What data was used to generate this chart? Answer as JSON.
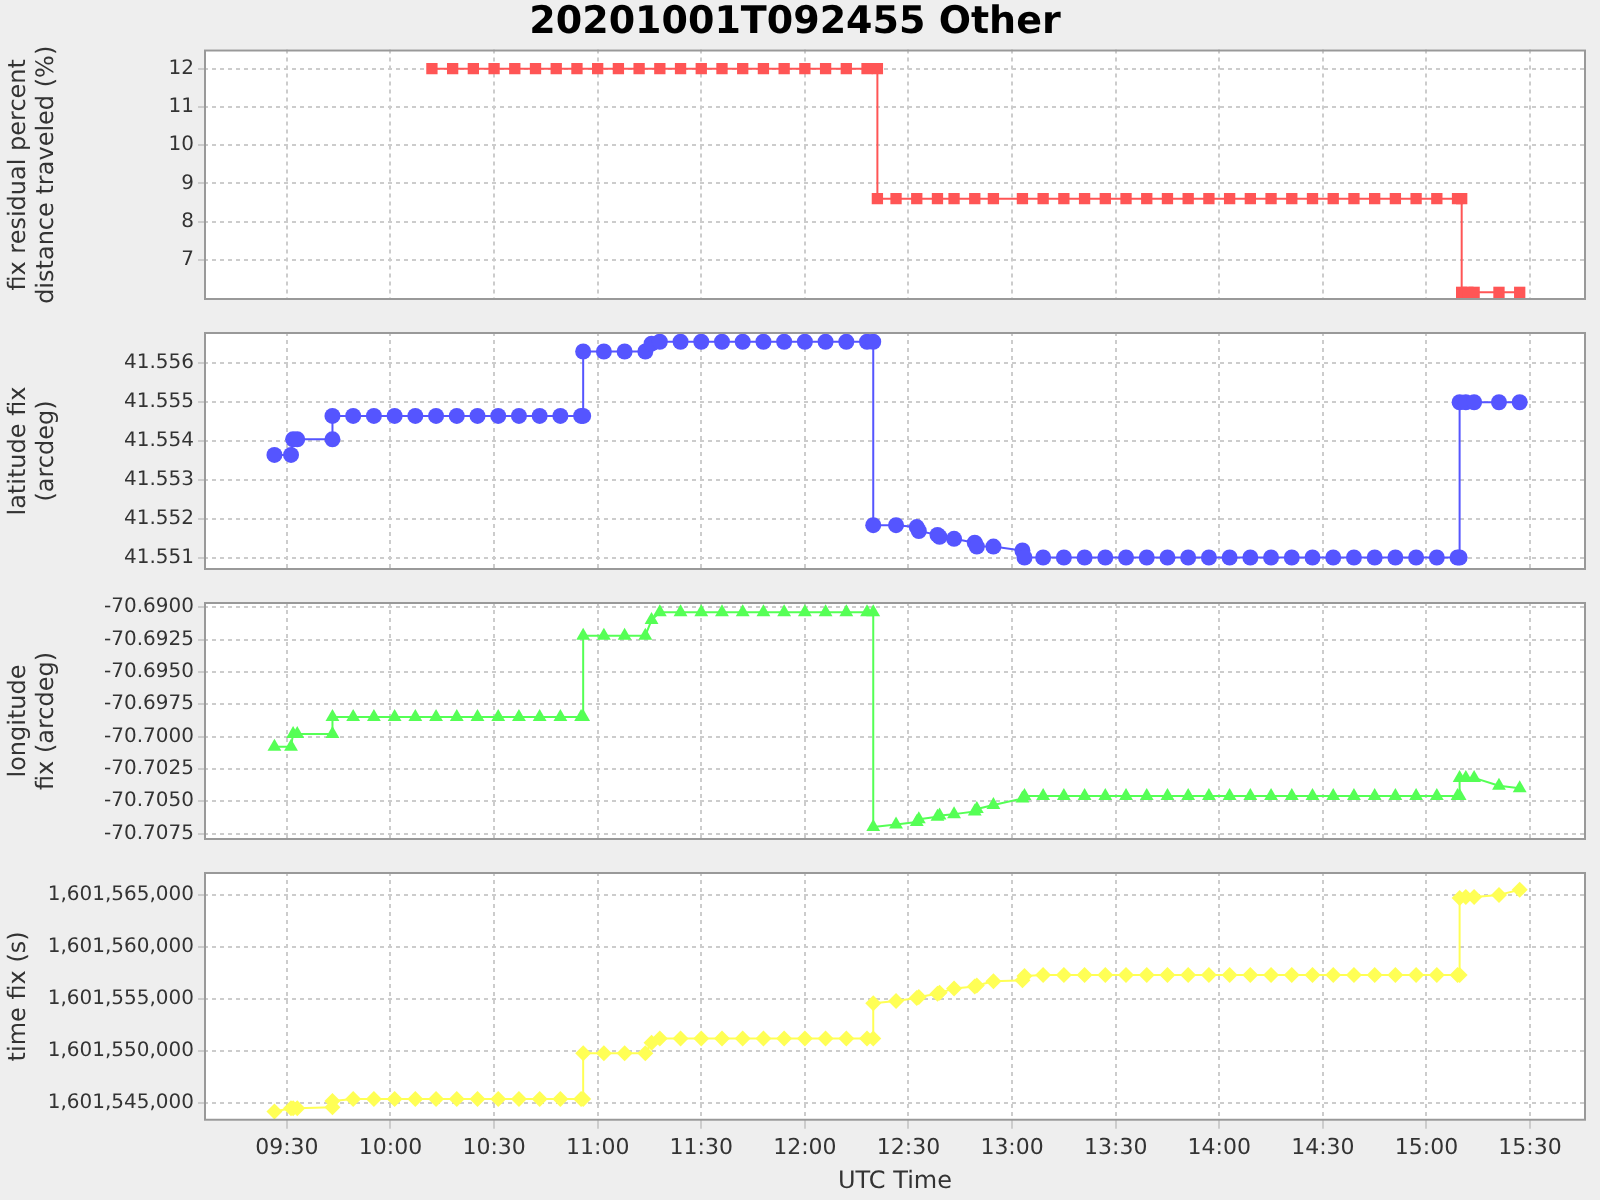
{
  "chart_data": [
    {
      "type": "line",
      "title": "20201001T092455 Other",
      "ylabel": "fix residual percent distance traveled (%)",
      "color": "#ff5555",
      "marker": "square",
      "line_style": "solid",
      "grid": true,
      "tick_labels": "y",
      "xlim": [
        9.1,
        15.77
      ],
      "xticks": [
        {
          "value": 9.5,
          "label": null
        },
        {
          "value": 10,
          "label": null
        },
        {
          "value": 10.5,
          "label": null
        },
        {
          "value": 11,
          "label": null
        },
        {
          "value": 11.5,
          "label": null
        },
        {
          "value": 12,
          "label": null
        },
        {
          "value": 12.5,
          "label": null
        },
        {
          "value": 13,
          "label": null
        },
        {
          "value": 13.5,
          "label": null
        },
        {
          "value": 14,
          "label": null
        },
        {
          "value": 14.5,
          "label": null
        },
        {
          "value": 15,
          "label": null
        },
        {
          "value": 15.5,
          "label": null
        }
      ],
      "ylim": [
        5.95,
        12.5
      ],
      "yticks": [
        7,
        8,
        9,
        10,
        11,
        12
      ],
      "x": [
        10.2,
        10.3,
        10.4,
        10.5,
        10.6,
        10.7,
        10.8,
        10.9,
        11.0,
        11.1,
        11.2,
        11.3,
        11.4,
        11.5,
        11.6,
        11.7,
        11.8,
        11.9,
        12.0,
        12.1,
        12.2,
        12.3,
        12.35,
        12.35,
        12.44,
        12.54,
        12.64,
        12.72,
        12.82,
        12.91,
        13.05,
        13.15,
        13.25,
        13.35,
        13.45,
        13.55,
        13.65,
        13.75,
        13.85,
        13.95,
        14.05,
        14.15,
        14.25,
        14.35,
        14.45,
        14.55,
        14.65,
        14.75,
        14.85,
        14.95,
        15.05,
        15.15,
        15.17,
        15.17,
        15.2,
        15.23,
        15.35,
        15.45
      ],
      "values": [
        12,
        12,
        12,
        12,
        12,
        12,
        12,
        12,
        12,
        12,
        12,
        12,
        12,
        12,
        12,
        12,
        12,
        12,
        12,
        12,
        12,
        12,
        12,
        8.6,
        8.6,
        8.6,
        8.6,
        8.6,
        8.6,
        8.6,
        8.6,
        8.6,
        8.6,
        8.6,
        8.6,
        8.6,
        8.6,
        8.6,
        8.6,
        8.6,
        8.6,
        8.6,
        8.6,
        8.6,
        8.6,
        8.6,
        8.6,
        8.6,
        8.6,
        8.6,
        8.6,
        8.6,
        8.6,
        6.15,
        6.15,
        6.15,
        6.15,
        6.15
      ]
    },
    {
      "type": "line",
      "ylabel": "latitude fix (arcdeg)",
      "color": "#5555ff",
      "marker": "circle",
      "line_style": "solid",
      "grid": true,
      "tick_labels": "y",
      "xlim": [
        9.1,
        15.77
      ],
      "xticks": [
        {
          "value": 9.5,
          "label": null
        },
        {
          "value": 10,
          "label": null
        },
        {
          "value": 10.5,
          "label": null
        },
        {
          "value": 11,
          "label": null
        },
        {
          "value": 11.5,
          "label": null
        },
        {
          "value": 12,
          "label": null
        },
        {
          "value": 12.5,
          "label": null
        },
        {
          "value": 13,
          "label": null
        },
        {
          "value": 13.5,
          "label": null
        },
        {
          "value": 14,
          "label": null
        },
        {
          "value": 14.5,
          "label": null
        },
        {
          "value": 15,
          "label": null
        },
        {
          "value": 15.5,
          "label": null
        }
      ],
      "ylim": [
        41.5507,
        41.5568
      ],
      "yticks": [
        41.551,
        41.552,
        41.553,
        41.554,
        41.555,
        41.556
      ],
      "x": [
        9.44,
        9.52,
        9.53,
        9.55,
        9.72,
        9.72,
        9.82,
        9.92,
        10.02,
        10.12,
        10.22,
        10.32,
        10.42,
        10.52,
        10.62,
        10.72,
        10.82,
        10.92,
        10.93,
        10.93,
        11.03,
        11.13,
        11.23,
        11.26,
        11.3,
        11.4,
        11.5,
        11.6,
        11.7,
        11.8,
        11.9,
        12.0,
        12.1,
        12.2,
        12.3,
        12.33,
        12.33,
        12.44,
        12.54,
        12.55,
        12.64,
        12.65,
        12.72,
        12.82,
        12.83,
        12.91,
        13.05,
        13.06,
        13.15,
        13.25,
        13.35,
        13.45,
        13.55,
        13.65,
        13.75,
        13.85,
        13.95,
        14.05,
        14.15,
        14.25,
        14.35,
        14.45,
        14.55,
        14.65,
        14.75,
        14.85,
        14.95,
        15.05,
        15.15,
        15.16,
        15.16,
        15.19,
        15.23,
        15.35,
        15.45
      ],
      "values": [
        41.55365,
        41.55365,
        41.55405,
        41.55405,
        41.55405,
        41.55465,
        41.55465,
        41.55465,
        41.55465,
        41.55465,
        41.55465,
        41.55465,
        41.55465,
        41.55465,
        41.55465,
        41.55465,
        41.55465,
        41.55465,
        41.55465,
        41.5563,
        41.5563,
        41.5563,
        41.5563,
        41.5565,
        41.55655,
        41.55655,
        41.55655,
        41.55655,
        41.55655,
        41.55655,
        41.55655,
        41.55655,
        41.55655,
        41.55655,
        41.55655,
        41.55655,
        41.55185,
        41.55185,
        41.5518,
        41.5517,
        41.5516,
        41.55155,
        41.5515,
        41.5514,
        41.5513,
        41.5513,
        41.5512,
        41.55102,
        41.55102,
        41.55102,
        41.55102,
        41.55102,
        41.55102,
        41.55102,
        41.55102,
        41.55102,
        41.55102,
        41.55102,
        41.55102,
        41.55102,
        41.55102,
        41.55102,
        41.55102,
        41.55102,
        41.55102,
        41.55102,
        41.55102,
        41.55102,
        41.55102,
        41.55102,
        41.555,
        41.555,
        41.555,
        41.555,
        41.555
      ]
    },
    {
      "type": "line",
      "ylabel": "longitude fix (arcdeg)",
      "color": "#55ff55",
      "marker": "triangle",
      "line_style": "solid",
      "grid": true,
      "tick_labels": "y",
      "xlim": [
        9.1,
        15.77
      ],
      "xticks": [
        {
          "value": 9.5,
          "label": null
        },
        {
          "value": 10,
          "label": null
        },
        {
          "value": 10.5,
          "label": null
        },
        {
          "value": 11,
          "label": null
        },
        {
          "value": 11.5,
          "label": null
        },
        {
          "value": 12,
          "label": null
        },
        {
          "value": 12.5,
          "label": null
        },
        {
          "value": 13,
          "label": null
        },
        {
          "value": 13.5,
          "label": null
        },
        {
          "value": 14,
          "label": null
        },
        {
          "value": 14.5,
          "label": null
        },
        {
          "value": 15,
          "label": null
        },
        {
          "value": 15.5,
          "label": null
        }
      ],
      "ylim": [
        -70.708,
        -70.6896
      ],
      "yticks": [
        {
          "value": -70.7075,
          "label": "-70.7075"
        },
        {
          "value": -70.705,
          "label": "-70.7050"
        },
        {
          "value": -70.7025,
          "label": "-70.7025"
        },
        {
          "value": -70.7,
          "label": "-70.7000"
        },
        {
          "value": -70.6975,
          "label": "-70.6975"
        },
        {
          "value": -70.695,
          "label": "-70.6950"
        },
        {
          "value": -70.6925,
          "label": "-70.6925"
        },
        {
          "value": -70.69,
          "label": "-70.6900"
        }
      ],
      "x": [
        9.44,
        9.52,
        9.53,
        9.55,
        9.72,
        9.72,
        9.82,
        9.92,
        10.02,
        10.12,
        10.22,
        10.32,
        10.42,
        10.52,
        10.62,
        10.72,
        10.82,
        10.92,
        10.93,
        10.93,
        11.03,
        11.13,
        11.23,
        11.26,
        11.3,
        11.4,
        11.5,
        11.6,
        11.7,
        11.8,
        11.9,
        12.0,
        12.1,
        12.2,
        12.3,
        12.33,
        12.33,
        12.44,
        12.54,
        12.55,
        12.64,
        12.65,
        12.72,
        12.82,
        12.83,
        12.91,
        13.05,
        13.06,
        13.15,
        13.25,
        13.35,
        13.45,
        13.55,
        13.65,
        13.75,
        13.85,
        13.95,
        14.05,
        14.15,
        14.25,
        14.35,
        14.45,
        14.55,
        14.65,
        14.75,
        14.85,
        14.95,
        15.05,
        15.15,
        15.16,
        15.16,
        15.19,
        15.23,
        15.35,
        15.45
      ],
      "values": [
        -70.7008,
        -70.7008,
        -70.6998,
        -70.6998,
        -70.6998,
        -70.6985,
        -70.6985,
        -70.6985,
        -70.6985,
        -70.6985,
        -70.6985,
        -70.6985,
        -70.6985,
        -70.6985,
        -70.6985,
        -70.6985,
        -70.6985,
        -70.6985,
        -70.6985,
        -70.6922,
        -70.6922,
        -70.6922,
        -70.6922,
        -70.691,
        -70.6904,
        -70.6904,
        -70.6904,
        -70.6904,
        -70.6904,
        -70.6904,
        -70.6904,
        -70.6904,
        -70.6904,
        -70.6904,
        -70.6904,
        -70.6904,
        -70.707,
        -70.7068,
        -70.7066,
        -70.7064,
        -70.7062,
        -70.7061,
        -70.706,
        -70.7058,
        -70.7056,
        -70.7053,
        -70.7048,
        -70.7046,
        -70.7046,
        -70.7046,
        -70.7046,
        -70.7046,
        -70.7046,
        -70.7046,
        -70.7046,
        -70.7046,
        -70.7046,
        -70.7046,
        -70.7046,
        -70.7046,
        -70.7046,
        -70.7046,
        -70.7046,
        -70.7046,
        -70.7046,
        -70.7046,
        -70.7046,
        -70.7046,
        -70.7046,
        -70.7046,
        -70.7032,
        -70.7032,
        -70.7032,
        -70.7038,
        -70.704
      ]
    },
    {
      "type": "line",
      "xlabel": "UTC Time",
      "ylabel": "time fix (s)",
      "color": "#ffff55",
      "marker": "diamond",
      "line_style": "solid",
      "grid": true,
      "xlim": [
        9.1,
        15.77
      ],
      "xticks": [
        {
          "value": 9.5,
          "label": "09:30"
        },
        {
          "value": 10,
          "label": "10:00"
        },
        {
          "value": 10.5,
          "label": "10:30"
        },
        {
          "value": 11,
          "label": "11:00"
        },
        {
          "value": 11.5,
          "label": "11:30"
        },
        {
          "value": 12,
          "label": "12:00"
        },
        {
          "value": 12.5,
          "label": "12:30"
        },
        {
          "value": 13,
          "label": "13:00"
        },
        {
          "value": 13.5,
          "label": "13:30"
        },
        {
          "value": 14,
          "label": "14:00"
        },
        {
          "value": 14.5,
          "label": "14:30"
        },
        {
          "value": 15,
          "label": "15:00"
        },
        {
          "value": 15.5,
          "label": "15:30"
        }
      ],
      "ylim": [
        1601543300,
        1601567200
      ],
      "yticks": [
        {
          "value": 1601545000,
          "label": "1,601,545,000"
        },
        {
          "value": 1601550000,
          "label": "1,601,550,000"
        },
        {
          "value": 1601555000,
          "label": "1,601,555,000"
        },
        {
          "value": 1601560000,
          "label": "1,601,560,000"
        },
        {
          "value": 1601565000,
          "label": "1,601,565,000"
        }
      ],
      "x": [
        9.44,
        9.52,
        9.53,
        9.55,
        9.72,
        9.72,
        9.82,
        9.92,
        10.02,
        10.12,
        10.22,
        10.32,
        10.42,
        10.52,
        10.62,
        10.72,
        10.82,
        10.92,
        10.93,
        10.93,
        11.03,
        11.13,
        11.23,
        11.26,
        11.3,
        11.4,
        11.5,
        11.6,
        11.7,
        11.8,
        11.9,
        12.0,
        12.1,
        12.2,
        12.3,
        12.33,
        12.33,
        12.44,
        12.54,
        12.55,
        12.64,
        12.65,
        12.72,
        12.82,
        12.83,
        12.91,
        13.05,
        13.06,
        13.15,
        13.25,
        13.35,
        13.45,
        13.55,
        13.65,
        13.75,
        13.85,
        13.95,
        14.05,
        14.15,
        14.25,
        14.35,
        14.45,
        14.55,
        14.65,
        14.75,
        14.85,
        14.95,
        15.05,
        15.15,
        15.16,
        15.16,
        15.19,
        15.23,
        15.35,
        15.45
      ],
      "values": [
        1601544200,
        1601544500,
        1601544500,
        1601544500,
        1601544600,
        1601545200,
        1601545400,
        1601545400,
        1601545400,
        1601545400,
        1601545400,
        1601545400,
        1601545400,
        1601545400,
        1601545400,
        1601545400,
        1601545400,
        1601545400,
        1601545400,
        1601549800,
        1601549800,
        1601549800,
        1601549800,
        1601550800,
        1601551200,
        1601551200,
        1601551200,
        1601551200,
        1601551200,
        1601551200,
        1601551200,
        1601551200,
        1601551200,
        1601551200,
        1601551200,
        1601551200,
        1601554600,
        1601554800,
        1601555100,
        1601555200,
        1601555500,
        1601555600,
        1601556000,
        1601556200,
        1601556300,
        1601556700,
        1601556800,
        1601557200,
        1601557300,
        1601557300,
        1601557300,
        1601557300,
        1601557300,
        1601557300,
        1601557300,
        1601557300,
        1601557300,
        1601557300,
        1601557300,
        1601557300,
        1601557300,
        1601557300,
        1601557300,
        1601557300,
        1601557300,
        1601557300,
        1601557300,
        1601557300,
        1601557300,
        1601557300,
        1601564700,
        1601564800,
        1601564800,
        1601565000,
        1601565500
      ]
    }
  ]
}
